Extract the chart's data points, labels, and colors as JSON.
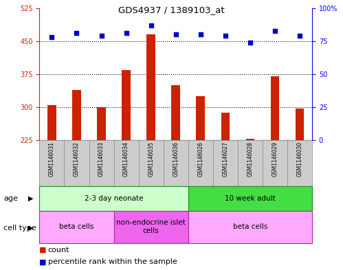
{
  "title": "GDS4937 / 1389103_at",
  "samples": [
    "GSM1146031",
    "GSM1146032",
    "GSM1146033",
    "GSM1146034",
    "GSM1146035",
    "GSM1146036",
    "GSM1146026",
    "GSM1146027",
    "GSM1146028",
    "GSM1146029",
    "GSM1146030"
  ],
  "counts": [
    305,
    340,
    300,
    385,
    465,
    350,
    325,
    288,
    228,
    370,
    297
  ],
  "percentiles": [
    78,
    81,
    79,
    81,
    87,
    80,
    80,
    79,
    74,
    83,
    79
  ],
  "ylim_left": [
    225,
    525
  ],
  "ylim_right": [
    0,
    100
  ],
  "yticks_left": [
    225,
    300,
    375,
    450,
    525
  ],
  "yticks_right": [
    0,
    25,
    50,
    75,
    100
  ],
  "bar_color": "#cc2200",
  "scatter_color": "#0000cc",
  "age_groups": [
    {
      "label": "2-3 day neonate",
      "start": 0,
      "end": 6,
      "color": "#ccffcc"
    },
    {
      "label": "10 week adult",
      "start": 6,
      "end": 11,
      "color": "#44dd44"
    }
  ],
  "cell_type_groups": [
    {
      "label": "beta cells",
      "start": 0,
      "end": 3,
      "color": "#ffaaff"
    },
    {
      "label": "non-endocrine islet\ncells",
      "start": 3,
      "end": 6,
      "color": "#ee66ee"
    },
    {
      "label": "beta cells",
      "start": 6,
      "end": 11,
      "color": "#ffaaff"
    }
  ]
}
